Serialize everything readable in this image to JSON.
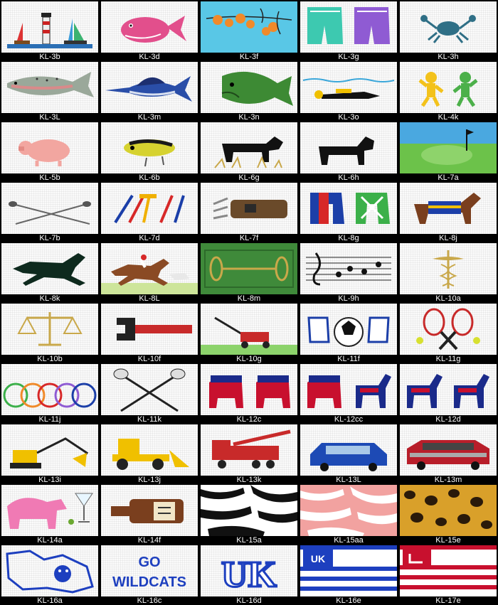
{
  "products": [
    {
      "code": "KL-3b",
      "icon": "sailboats-lighthouse-icon"
    },
    {
      "code": "KL-3d",
      "icon": "pink-whale-icon"
    },
    {
      "code": "KL-3f",
      "icon": "flowers-on-blue-icon"
    },
    {
      "code": "KL-3g",
      "icon": "swim-trunks-icon"
    },
    {
      "code": "KL-3h",
      "icon": "crab-icon"
    },
    {
      "code": "KL-3L",
      "icon": "trout-icon"
    },
    {
      "code": "KL-3m",
      "icon": "marlin-icon"
    },
    {
      "code": "KL-3n",
      "icon": "bass-fish-icon"
    },
    {
      "code": "KL-3o",
      "icon": "scuba-diver-icon"
    },
    {
      "code": "KL-4k",
      "icon": "dancing-bears-icon"
    },
    {
      "code": "KL-5b",
      "icon": "pig-icon"
    },
    {
      "code": "KL-6b",
      "icon": "fishing-lure-icon"
    },
    {
      "code": "KL-6g",
      "icon": "black-dog-in-grass-icon"
    },
    {
      "code": "KL-6h",
      "icon": "black-lab-icon"
    },
    {
      "code": "KL-7a",
      "icon": "golf-green-icon"
    },
    {
      "code": "KL-7b",
      "icon": "crossed-golf-clubs-icon"
    },
    {
      "code": "KL-7d",
      "icon": "golf-tees-icon"
    },
    {
      "code": "KL-7f",
      "icon": "golf-bag-icon"
    },
    {
      "code": "KL-8g",
      "icon": "jockey-silks-icon"
    },
    {
      "code": "KL-8j",
      "icon": "race-horse-blanket-icon"
    },
    {
      "code": "KL-8k",
      "icon": "running-horse-icon"
    },
    {
      "code": "KL-8L",
      "icon": "horse-and-jockey-icon"
    },
    {
      "code": "KL-8m",
      "icon": "horse-bit-icon"
    },
    {
      "code": "KL-9h",
      "icon": "music-staff-icon"
    },
    {
      "code": "KL-10a",
      "icon": "caduceus-icon"
    },
    {
      "code": "KL-10b",
      "icon": "scales-of-justice-icon"
    },
    {
      "code": "KL-10f",
      "icon": "pipe-wrench-icon"
    },
    {
      "code": "KL-10g",
      "icon": "lawn-mower-icon"
    },
    {
      "code": "KL-11f",
      "icon": "soccer-ball-gloves-icon"
    },
    {
      "code": "KL-11g",
      "icon": "tennis-rackets-icon"
    },
    {
      "code": "KL-11j",
      "icon": "bicycle-wheels-icon"
    },
    {
      "code": "KL-11k",
      "icon": "lacrosse-sticks-icon"
    },
    {
      "code": "KL-12c",
      "icon": "republican-elephants-icon"
    },
    {
      "code": "KL-12cc",
      "icon": "elephant-and-donkey-icon"
    },
    {
      "code": "KL-12d",
      "icon": "democrat-donkeys-icon"
    },
    {
      "code": "KL-13i",
      "icon": "excavator-icon"
    },
    {
      "code": "KL-13j",
      "icon": "bulldozer-icon"
    },
    {
      "code": "KL-13k",
      "icon": "fire-truck-icon"
    },
    {
      "code": "KL-13L",
      "icon": "blue-car-icon"
    },
    {
      "code": "KL-13m",
      "icon": "red-muscle-car-icon"
    },
    {
      "code": "KL-14a",
      "icon": "pink-elephant-martini-icon"
    },
    {
      "code": "KL-14f",
      "icon": "whiskey-bottle-icon"
    },
    {
      "code": "KL-15a",
      "icon": "zebra-print-icon"
    },
    {
      "code": "KL-15aa",
      "icon": "pink-zebra-print-icon"
    },
    {
      "code": "KL-15e",
      "icon": "leopard-print-icon"
    },
    {
      "code": "KL-16a",
      "icon": "wildcat-mascot-icon"
    },
    {
      "code": "KL-16c",
      "icon": "go-wildcats-text-icon",
      "text": "GO WILDCATS"
    },
    {
      "code": "KL-16d",
      "icon": "uk-logo-icon",
      "text": "UK"
    },
    {
      "code": "KL-16e",
      "icon": "uk-flag-stripes-icon",
      "text": "UK"
    },
    {
      "code": "KL-17e",
      "icon": "red-flag-stripes-icon"
    }
  ],
  "colors": {
    "background": "#000000",
    "label_text": "#ffffff",
    "canvas": "#fbfbfb",
    "navy": "#1a2a8a",
    "red": "#c8102e",
    "uk_blue": "#1d3fbf"
  }
}
